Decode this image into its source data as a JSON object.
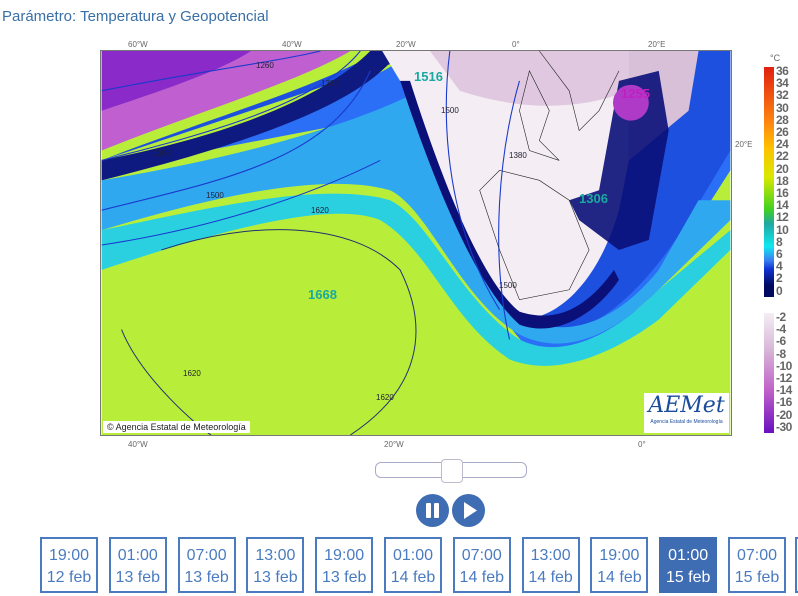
{
  "header": {
    "title": "Parámetro: Temperatura y Geopotencial"
  },
  "map": {
    "top_lon_labels": [
      "60°W",
      "40°W",
      "20°W",
      "0°",
      "20°E"
    ],
    "bottom_lon_labels": [
      "40°W",
      "20°W",
      "0°"
    ],
    "right_label": "20°E",
    "contour_labels": [
      "1260",
      "1380",
      "1380",
      "1500",
      "1620",
      "1620",
      "1620",
      "1500",
      "1500",
      "1380"
    ],
    "value_labels": [
      "1516",
      "1255",
      "1306",
      "1668"
    ],
    "copyright": "Agencia Estatal de Meteorología",
    "logo_text": "AEMet",
    "logo_subtext": "Agencia Estatal de Meteorología"
  },
  "legend": {
    "unit": "°C",
    "warm": [
      "36",
      "34",
      "32",
      "30",
      "28",
      "26",
      "24",
      "22",
      "20",
      "18",
      "16",
      "14",
      "12",
      "10",
      "8",
      "6",
      "4",
      "2",
      "0"
    ],
    "cold": [
      "-2",
      "-4",
      "-6",
      "-8",
      "-10",
      "-12",
      "-14",
      "-16",
      "-20",
      "-30"
    ]
  },
  "player": {
    "slider_position": 0.5,
    "pause_icon": "pause-icon",
    "play_icon": "play-icon"
  },
  "timesteps": [
    {
      "time": "19:00",
      "date": "12 feb"
    },
    {
      "time": "01:00",
      "date": "13 feb"
    },
    {
      "time": "07:00",
      "date": "13 feb"
    },
    {
      "time": "13:00",
      "date": "13 feb"
    },
    {
      "time": "19:00",
      "date": "13 feb"
    },
    {
      "time": "01:00",
      "date": "14 feb"
    },
    {
      "time": "07:00",
      "date": "14 feb"
    },
    {
      "time": "13:00",
      "date": "14 feb"
    },
    {
      "time": "19:00",
      "date": "14 feb"
    },
    {
      "time": "01:00",
      "date": "15 feb"
    },
    {
      "time": "07:00",
      "date": "15 feb"
    }
  ],
  "selected_index": 9,
  "colors": {
    "accent": "#3f6db3",
    "title": "#3a6fa5"
  }
}
